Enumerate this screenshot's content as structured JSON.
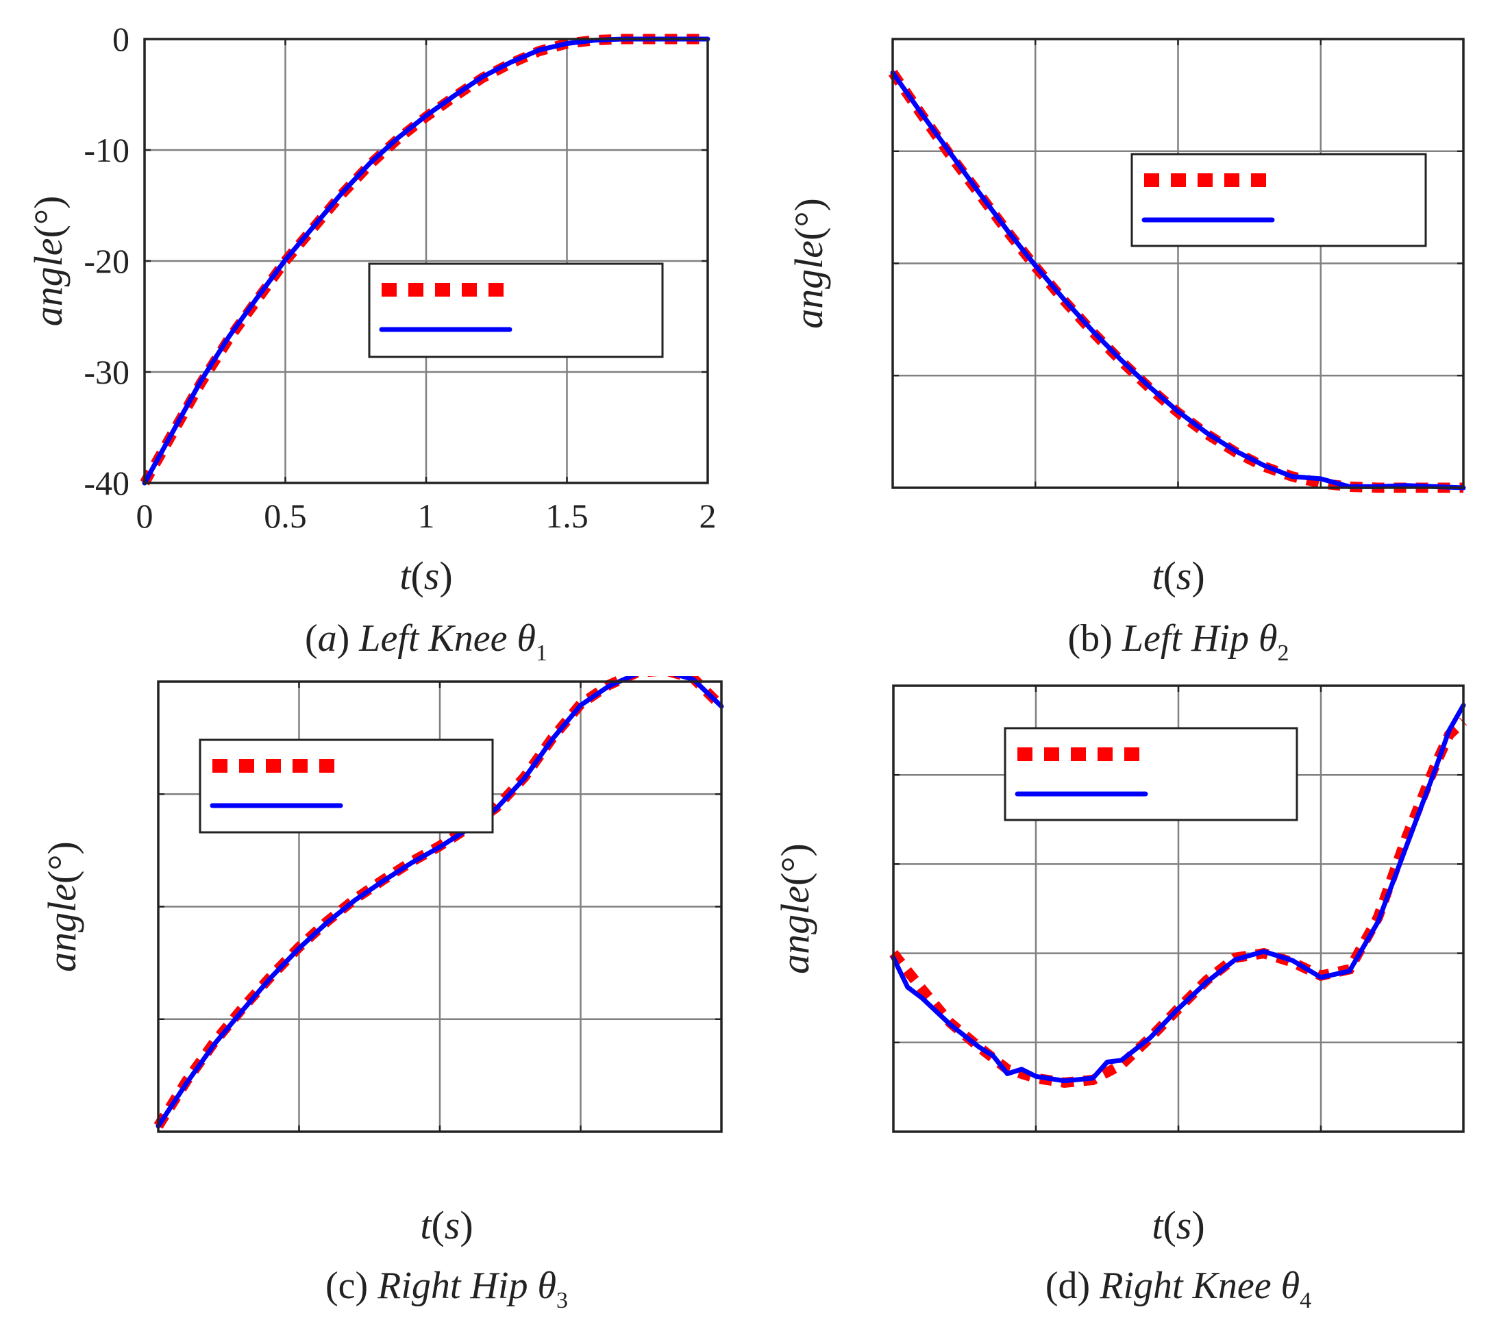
{
  "chart_data": [
    {
      "type": "line",
      "caption_prefix": "(",
      "caption_letter": "a",
      "caption_suffix": ") ",
      "caption_title": "Left Knee ",
      "caption_symbol": "θ",
      "caption_sub": "1",
      "xlabel_var": "t",
      "xlabel_unit": "s",
      "ylabel_var": "angle",
      "ylabel_unit": "°",
      "xlim": [
        0,
        2
      ],
      "ylim": [
        -40,
        0
      ],
      "xticks": [
        0,
        0.5,
        1,
        1.5,
        2
      ],
      "xtick_labels": [
        "0",
        "0.5",
        "1",
        "1.5",
        "2"
      ],
      "yticks": [
        0,
        -10,
        -20,
        -30,
        -40
      ],
      "ytick_labels": [
        "0",
        "-10",
        "-20",
        "-30",
        "-40"
      ],
      "grid": true,
      "legend_position": "center-right",
      "series": [
        {
          "style": "dashed",
          "color": "#ff0000",
          "x": [
            0,
            0.1,
            0.2,
            0.3,
            0.4,
            0.5,
            0.6,
            0.7,
            0.8,
            0.9,
            1.0,
            1.1,
            1.2,
            1.3,
            1.4,
            1.5,
            1.6,
            1.7,
            1.8,
            1.9,
            2.0
          ],
          "y": [
            -40,
            -35.5,
            -31,
            -27,
            -23.5,
            -20,
            -17,
            -14,
            -11.3,
            -9,
            -7,
            -5.2,
            -3.5,
            -2.2,
            -1.1,
            -0.4,
            -0.1,
            0,
            0,
            0,
            0
          ]
        },
        {
          "style": "solid",
          "color": "#0000ff",
          "x": [
            0,
            0.1,
            0.2,
            0.3,
            0.4,
            0.5,
            0.6,
            0.7,
            0.8,
            0.9,
            1.0,
            1.1,
            1.2,
            1.3,
            1.4,
            1.5,
            1.6,
            1.7,
            1.8,
            1.9,
            2.0
          ],
          "y": [
            -40,
            -35.4,
            -30.8,
            -26.8,
            -23.3,
            -19.9,
            -16.9,
            -13.9,
            -11.2,
            -8.9,
            -6.9,
            -5.1,
            -3.4,
            -2.1,
            -1.0,
            -0.4,
            -0.1,
            0,
            0,
            0,
            0
          ]
        }
      ]
    },
    {
      "type": "line",
      "caption_prefix": "(",
      "caption_letter": "b",
      "caption_suffix": ") ",
      "caption_title": "Left Hip ",
      "caption_symbol": "θ",
      "caption_sub": "2",
      "xlabel_var": "t",
      "xlabel_unit": "s",
      "ylabel_var": "angle",
      "ylabel_unit": "°",
      "xlim": [
        0,
        2
      ],
      "ylim": [
        0,
        4
      ],
      "xticks": [
        0,
        0.5,
        1,
        1.5,
        2
      ],
      "yticks": [
        0,
        1,
        2,
        3,
        4
      ],
      "grid": true,
      "legend_position": "top-right",
      "series": [
        {
          "style": "dashed",
          "color": "#ff0000",
          "x": [
            0,
            0.1,
            0.2,
            0.3,
            0.4,
            0.5,
            0.6,
            0.7,
            0.8,
            0.9,
            1.0,
            1.1,
            1.2,
            1.3,
            1.4,
            1.5,
            1.6,
            1.7,
            1.8,
            1.9,
            2.0
          ],
          "y": [
            3.7,
            3.33,
            2.97,
            2.63,
            2.29,
            1.97,
            1.67,
            1.39,
            1.13,
            0.89,
            0.67,
            0.48,
            0.32,
            0.19,
            0.1,
            0.04,
            0.01,
            0,
            0,
            0,
            0
          ]
        },
        {
          "style": "solid",
          "color": "#0000ff",
          "x": [
            0,
            0.1,
            0.2,
            0.3,
            0.4,
            0.5,
            0.6,
            0.7,
            0.8,
            0.9,
            1.0,
            1.1,
            1.2,
            1.3,
            1.4,
            1.5,
            1.6,
            1.7,
            1.8,
            1.9,
            2.0
          ],
          "y": [
            3.7,
            3.34,
            2.99,
            2.64,
            2.3,
            1.98,
            1.68,
            1.4,
            1.14,
            0.9,
            0.68,
            0.49,
            0.33,
            0.2,
            0.1,
            0.08,
            0.01,
            0.01,
            0.02,
            0.01,
            0
          ]
        }
      ]
    },
    {
      "type": "line",
      "caption_prefix": "(",
      "caption_letter": "c",
      "caption_suffix": ") ",
      "caption_title": "Right Hip ",
      "caption_symbol": "θ",
      "caption_sub": "3",
      "xlabel_var": "t",
      "xlabel_unit": "s",
      "ylabel_var": "angle",
      "ylabel_unit": "°",
      "xlim": [
        0,
        2
      ],
      "ylim": [
        0,
        4
      ],
      "xticks": [
        0,
        0.5,
        1,
        1.5,
        2
      ],
      "yticks": [
        0,
        1,
        2,
        3,
        4
      ],
      "grid": true,
      "legend_position": "top-left",
      "series": [
        {
          "style": "dashed",
          "color": "#ff0000",
          "x": [
            0,
            0.1,
            0.2,
            0.3,
            0.4,
            0.5,
            0.6,
            0.7,
            0.8,
            0.9,
            1.0,
            1.1,
            1.2,
            1.3,
            1.4,
            1.5,
            1.6,
            1.7,
            1.8,
            1.9,
            2.0
          ],
          "y": [
            0.05,
            0.45,
            0.8,
            1.1,
            1.38,
            1.64,
            1.87,
            2.07,
            2.24,
            2.4,
            2.54,
            2.7,
            2.88,
            3.15,
            3.5,
            3.8,
            3.97,
            4.08,
            4.1,
            4.03,
            3.78
          ]
        },
        {
          "style": "solid",
          "color": "#0000ff",
          "x": [
            0,
            0.1,
            0.2,
            0.3,
            0.4,
            0.5,
            0.6,
            0.7,
            0.8,
            0.9,
            1.0,
            1.1,
            1.2,
            1.3,
            1.4,
            1.5,
            1.6,
            1.7,
            1.8,
            1.9,
            2.0
          ],
          "y": [
            0.05,
            0.43,
            0.78,
            1.08,
            1.37,
            1.63,
            1.86,
            2.06,
            2.23,
            2.39,
            2.53,
            2.69,
            2.87,
            3.14,
            3.49,
            3.79,
            3.96,
            4.07,
            4.09,
            4.02,
            3.78
          ]
        }
      ]
    },
    {
      "type": "line",
      "caption_prefix": "(",
      "caption_letter": "d",
      "caption_suffix": ") ",
      "caption_title": "Right Knee ",
      "caption_symbol": "θ",
      "caption_sub": "4",
      "xlabel_var": "t",
      "xlabel_unit": "s",
      "ylabel_var": "angle",
      "ylabel_unit": "°",
      "xlim": [
        0,
        2
      ],
      "ylim": [
        0,
        5
      ],
      "xticks": [
        0,
        0.5,
        1,
        1.5,
        2
      ],
      "yticks": [
        0,
        1,
        2,
        3,
        4,
        5
      ],
      "grid": true,
      "legend_position": "top-center",
      "series": [
        {
          "style": "dashed",
          "color": "#ff0000",
          "x": [
            0,
            0.1,
            0.2,
            0.3,
            0.4,
            0.5,
            0.6,
            0.7,
            0.8,
            0.9,
            1.0,
            1.1,
            1.2,
            1.3,
            1.4,
            1.5,
            1.6,
            1.7,
            1.8,
            1.9,
            1.95,
            2.0
          ],
          "y": [
            2.0,
            1.6,
            1.22,
            0.95,
            0.7,
            0.6,
            0.55,
            0.58,
            0.75,
            1.05,
            1.38,
            1.7,
            1.95,
            2.0,
            1.9,
            1.75,
            1.82,
            2.4,
            3.3,
            4.1,
            4.45,
            4.6
          ]
        },
        {
          "style": "solid",
          "color": "#0000ff",
          "x": [
            0,
            0.05,
            0.1,
            0.2,
            0.3,
            0.35,
            0.4,
            0.45,
            0.5,
            0.6,
            0.7,
            0.75,
            0.8,
            0.9,
            1.0,
            1.1,
            1.2,
            1.3,
            1.4,
            1.5,
            1.6,
            1.7,
            1.8,
            1.9,
            1.95,
            2.0
          ],
          "y": [
            1.95,
            1.62,
            1.5,
            1.2,
            0.95,
            0.85,
            0.65,
            0.7,
            0.62,
            0.57,
            0.6,
            0.78,
            0.8,
            1.05,
            1.38,
            1.68,
            1.93,
            2.02,
            1.92,
            1.73,
            1.8,
            2.35,
            3.2,
            4.05,
            4.5,
            4.78
          ]
        }
      ]
    }
  ]
}
